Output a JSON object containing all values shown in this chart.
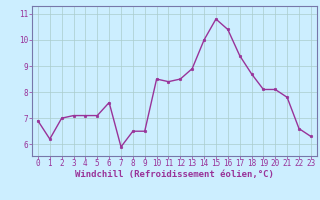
{
  "x": [
    0,
    1,
    2,
    3,
    4,
    5,
    6,
    7,
    8,
    9,
    10,
    11,
    12,
    13,
    14,
    15,
    16,
    17,
    18,
    19,
    20,
    21,
    22,
    23
  ],
  "y": [
    6.9,
    6.2,
    7.0,
    7.1,
    7.1,
    7.1,
    7.6,
    5.9,
    6.5,
    6.5,
    8.5,
    8.4,
    8.5,
    8.9,
    10.0,
    10.8,
    10.4,
    9.4,
    8.7,
    8.1,
    8.1,
    7.8,
    6.6,
    6.3
  ],
  "line_color": "#993399",
  "marker": "o",
  "markersize": 1.8,
  "linewidth": 1.0,
  "xlabel": "Windchill (Refroidissement éolien,°C)",
  "xlabel_fontsize": 6.5,
  "ylabel_ticks": [
    6,
    7,
    8,
    9,
    10,
    11
  ],
  "xlim": [
    -0.5,
    23.5
  ],
  "ylim": [
    5.55,
    11.3
  ],
  "bg_color": "#cceeff",
  "grid_color": "#aacccc",
  "tick_label_fontsize": 5.5,
  "spine_color": "#7777aa"
}
